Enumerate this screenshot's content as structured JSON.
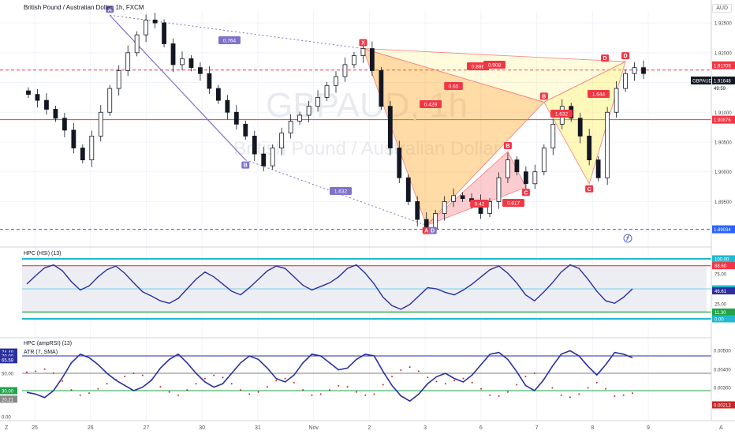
{
  "header": {
    "title": "British Pound / Australian Dollar, 1h, FXCM",
    "currency": "AUD",
    "watermark_symbol": "GBPAUD, 1h",
    "watermark_name": "British Pound / Australian Dollar"
  },
  "price_axis": {
    "ticks": [
      "1.92500",
      "1.92000",
      "1.91500",
      "1.91000",
      "1.90500",
      "1.90000",
      "1.89500",
      "1.89000"
    ],
    "range": [
      1.8875,
      1.927
    ]
  },
  "time_axis": {
    "labels": [
      "25",
      "26",
      "27",
      "30",
      "31",
      "Nov",
      "2",
      "3",
      "6",
      "7",
      "8",
      "9"
    ],
    "left_corner": "Z",
    "right_corner": "A"
  },
  "price_tags": [
    {
      "label": "1.91709",
      "color": "#f23645"
    },
    {
      "label": "GBPAUD",
      "color": "#131722"
    },
    {
      "label": "1.91648",
      "color": "#131722"
    },
    {
      "label": "49:59",
      "color": "#131722"
    },
    {
      "label": "1.90876",
      "color": "#f23645"
    },
    {
      "label": "1.89034",
      "color": "#2962ff"
    }
  ],
  "chart_data": {
    "type": "candlestick",
    "symbol": "GBPAUD",
    "timeframe": "1h",
    "levels": [
      {
        "price": 1.91709,
        "style": "dashed",
        "color": "#f23645"
      },
      {
        "price": 1.90876,
        "style": "solid",
        "color": "#f23645"
      },
      {
        "price": 1.89034,
        "style": "dashed",
        "color": "#2962ff"
      }
    ],
    "close_approx": [
      1.913,
      1.912,
      1.9105,
      1.909,
      1.907,
      1.904,
      1.902,
      1.906,
      1.91,
      1.914,
      1.917,
      1.92,
      1.923,
      1.9255,
      1.925,
      1.9215,
      1.918,
      1.919,
      1.9175,
      1.9165,
      1.914,
      1.912,
      1.91,
      1.908,
      1.906,
      1.903,
      1.901,
      1.904,
      1.9065,
      1.9085,
      1.9095,
      1.911,
      1.9125,
      1.9145,
      1.916,
      1.918,
      1.9195,
      1.9207,
      1.917,
      1.911,
      1.904,
      1.899,
      1.895,
      1.892,
      1.8905,
      1.893,
      1.895,
      1.896,
      1.8955,
      1.895,
      1.893,
      1.895,
      1.899,
      1.902,
      1.9,
      1.898,
      1.9,
      1.904,
      1.908,
      1.911,
      1.909,
      1.906,
      1.902,
      1.899,
      1.91,
      1.914,
      1.9165,
      1.9175,
      1.9165
    ],
    "harmonic_patterns": [
      {
        "pattern": "bearish_xabcd",
        "points": [
          {
            "label": "X",
            "price": 1.9207
          },
          {
            "label": "A",
            "price": 1.891
          },
          {
            "label": "B",
            "price": 1.9034
          },
          {
            "label": "C",
            "price": 1.8974
          },
          {
            "label": "D",
            "price": 1.9133
          }
        ],
        "ratios": [
          "0.429",
          "0.65",
          "0.42",
          "1.632"
        ]
      },
      {
        "pattern": "bearish_xabcd",
        "points": [
          {
            "label": "X",
            "price": 1.9207
          },
          {
            "label": "A",
            "price": 1.891
          },
          {
            "label": "B",
            "price": 1.9117
          },
          {
            "label": "C",
            "price": 1.898
          },
          {
            "label": "D",
            "price": 1.9185
          }
        ],
        "ratios": [
          "0.886",
          "0.908",
          "0.617",
          "1.644"
        ]
      }
    ],
    "abcd_pattern": {
      "points": [
        {
          "label": "A",
          "price": 1.9263
        },
        {
          "label": "B",
          "price": 1.902
        },
        {
          "label": "D",
          "price": 1.891
        }
      ],
      "ratios": [
        "0.764",
        "1.632"
      ]
    },
    "ratio_labels": [
      "0.764",
      "1.632",
      "0.886",
      "0.908",
      "0.65",
      "0.429",
      "0.42",
      "0.617",
      "1.632",
      "1.644"
    ]
  },
  "indicators": {
    "hsi": {
      "title": "HPC (HSI) (13)",
      "ticks": [
        "100.00",
        "88.60",
        "75.00",
        "50.00",
        "46.61",
        "25.00",
        "11.30",
        "0.00"
      ],
      "levels": [
        100,
        88.6,
        50,
        11.3,
        0
      ],
      "current": 46.61,
      "values": [
        58,
        72,
        85,
        90,
        80,
        62,
        48,
        55,
        70,
        82,
        88,
        76,
        60,
        45,
        38,
        30,
        26,
        34,
        50,
        66,
        78,
        70,
        58,
        46,
        40,
        52,
        66,
        80,
        88,
        84,
        70,
        56,
        48,
        54,
        60,
        70,
        84,
        90,
        76,
        58,
        36,
        22,
        16,
        24,
        38,
        52,
        50,
        44,
        40,
        48,
        58,
        70,
        82,
        88,
        76,
        60,
        40,
        30,
        44,
        60,
        78,
        90,
        84,
        66,
        46,
        30,
        26,
        36,
        50
      ]
    },
    "amprsi": {
      "title": "HPC (ampRSI) (13)",
      "atr_title": "ATR (7, SMA)",
      "ticks": [
        "74.49",
        "70.00",
        "65.59",
        "50.00",
        "30.00",
        "20.21",
        "0.00"
      ],
      "atr_ticks": [
        "0.00500",
        "0.00400",
        "0.00300",
        "0.00212"
      ],
      "levels": [
        70,
        50,
        30
      ],
      "current": 65.59,
      "atr_current": 0.00212,
      "values": [
        28,
        26,
        22,
        30,
        45,
        62,
        72,
        68,
        60,
        50,
        42,
        36,
        30,
        34,
        42,
        56,
        66,
        72,
        62,
        50,
        40,
        34,
        38,
        50,
        62,
        70,
        66,
        56,
        44,
        40,
        48,
        62,
        72,
        70,
        62,
        54,
        56,
        66,
        72,
        70,
        52,
        36,
        24,
        18,
        26,
        38,
        46,
        50,
        44,
        40,
        48,
        60,
        72,
        74,
        66,
        52,
        36,
        30,
        42,
        58,
        72,
        76,
        70,
        58,
        48,
        60,
        74,
        72,
        68
      ]
    }
  }
}
